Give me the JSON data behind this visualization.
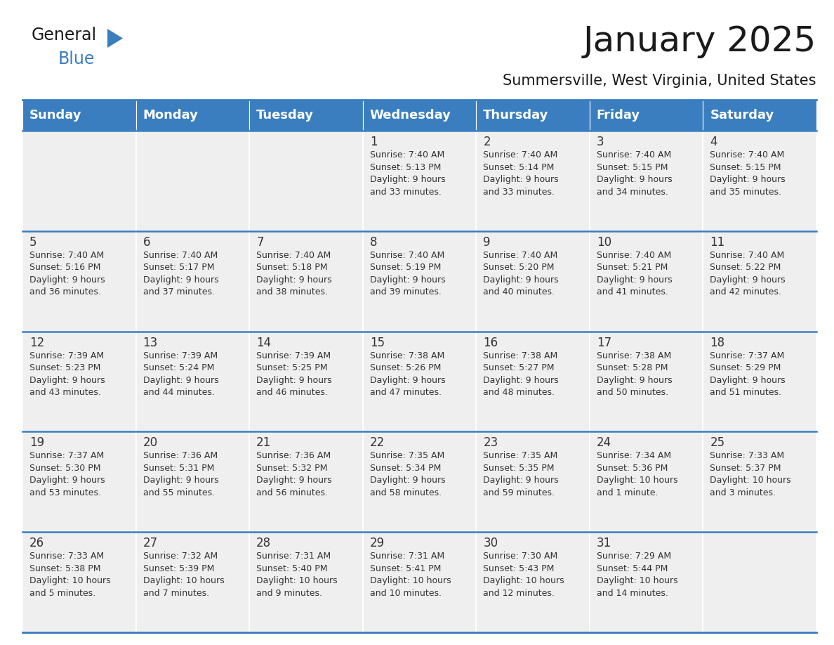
{
  "title": "January 2025",
  "subtitle": "Summersville, West Virginia, United States",
  "header_color": "#3a7ebf",
  "header_text_color": "#ffffff",
  "cell_bg_color": "#efefef",
  "border_color": "#3a7ebf",
  "text_color": "#333333",
  "days_of_week": [
    "Sunday",
    "Monday",
    "Tuesday",
    "Wednesday",
    "Thursday",
    "Friday",
    "Saturday"
  ],
  "weeks": [
    [
      {
        "day": "",
        "info": ""
      },
      {
        "day": "",
        "info": ""
      },
      {
        "day": "",
        "info": ""
      },
      {
        "day": "1",
        "info": "Sunrise: 7:40 AM\nSunset: 5:13 PM\nDaylight: 9 hours\nand 33 minutes."
      },
      {
        "day": "2",
        "info": "Sunrise: 7:40 AM\nSunset: 5:14 PM\nDaylight: 9 hours\nand 33 minutes."
      },
      {
        "day": "3",
        "info": "Sunrise: 7:40 AM\nSunset: 5:15 PM\nDaylight: 9 hours\nand 34 minutes."
      },
      {
        "day": "4",
        "info": "Sunrise: 7:40 AM\nSunset: 5:15 PM\nDaylight: 9 hours\nand 35 minutes."
      }
    ],
    [
      {
        "day": "5",
        "info": "Sunrise: 7:40 AM\nSunset: 5:16 PM\nDaylight: 9 hours\nand 36 minutes."
      },
      {
        "day": "6",
        "info": "Sunrise: 7:40 AM\nSunset: 5:17 PM\nDaylight: 9 hours\nand 37 minutes."
      },
      {
        "day": "7",
        "info": "Sunrise: 7:40 AM\nSunset: 5:18 PM\nDaylight: 9 hours\nand 38 minutes."
      },
      {
        "day": "8",
        "info": "Sunrise: 7:40 AM\nSunset: 5:19 PM\nDaylight: 9 hours\nand 39 minutes."
      },
      {
        "day": "9",
        "info": "Sunrise: 7:40 AM\nSunset: 5:20 PM\nDaylight: 9 hours\nand 40 minutes."
      },
      {
        "day": "10",
        "info": "Sunrise: 7:40 AM\nSunset: 5:21 PM\nDaylight: 9 hours\nand 41 minutes."
      },
      {
        "day": "11",
        "info": "Sunrise: 7:40 AM\nSunset: 5:22 PM\nDaylight: 9 hours\nand 42 minutes."
      }
    ],
    [
      {
        "day": "12",
        "info": "Sunrise: 7:39 AM\nSunset: 5:23 PM\nDaylight: 9 hours\nand 43 minutes."
      },
      {
        "day": "13",
        "info": "Sunrise: 7:39 AM\nSunset: 5:24 PM\nDaylight: 9 hours\nand 44 minutes."
      },
      {
        "day": "14",
        "info": "Sunrise: 7:39 AM\nSunset: 5:25 PM\nDaylight: 9 hours\nand 46 minutes."
      },
      {
        "day": "15",
        "info": "Sunrise: 7:38 AM\nSunset: 5:26 PM\nDaylight: 9 hours\nand 47 minutes."
      },
      {
        "day": "16",
        "info": "Sunrise: 7:38 AM\nSunset: 5:27 PM\nDaylight: 9 hours\nand 48 minutes."
      },
      {
        "day": "17",
        "info": "Sunrise: 7:38 AM\nSunset: 5:28 PM\nDaylight: 9 hours\nand 50 minutes."
      },
      {
        "day": "18",
        "info": "Sunrise: 7:37 AM\nSunset: 5:29 PM\nDaylight: 9 hours\nand 51 minutes."
      }
    ],
    [
      {
        "day": "19",
        "info": "Sunrise: 7:37 AM\nSunset: 5:30 PM\nDaylight: 9 hours\nand 53 minutes."
      },
      {
        "day": "20",
        "info": "Sunrise: 7:36 AM\nSunset: 5:31 PM\nDaylight: 9 hours\nand 55 minutes."
      },
      {
        "day": "21",
        "info": "Sunrise: 7:36 AM\nSunset: 5:32 PM\nDaylight: 9 hours\nand 56 minutes."
      },
      {
        "day": "22",
        "info": "Sunrise: 7:35 AM\nSunset: 5:34 PM\nDaylight: 9 hours\nand 58 minutes."
      },
      {
        "day": "23",
        "info": "Sunrise: 7:35 AM\nSunset: 5:35 PM\nDaylight: 9 hours\nand 59 minutes."
      },
      {
        "day": "24",
        "info": "Sunrise: 7:34 AM\nSunset: 5:36 PM\nDaylight: 10 hours\nand 1 minute."
      },
      {
        "day": "25",
        "info": "Sunrise: 7:33 AM\nSunset: 5:37 PM\nDaylight: 10 hours\nand 3 minutes."
      }
    ],
    [
      {
        "day": "26",
        "info": "Sunrise: 7:33 AM\nSunset: 5:38 PM\nDaylight: 10 hours\nand 5 minutes."
      },
      {
        "day": "27",
        "info": "Sunrise: 7:32 AM\nSunset: 5:39 PM\nDaylight: 10 hours\nand 7 minutes."
      },
      {
        "day": "28",
        "info": "Sunrise: 7:31 AM\nSunset: 5:40 PM\nDaylight: 10 hours\nand 9 minutes."
      },
      {
        "day": "29",
        "info": "Sunrise: 7:31 AM\nSunset: 5:41 PM\nDaylight: 10 hours\nand 10 minutes."
      },
      {
        "day": "30",
        "info": "Sunrise: 7:30 AM\nSunset: 5:43 PM\nDaylight: 10 hours\nand 12 minutes."
      },
      {
        "day": "31",
        "info": "Sunrise: 7:29 AM\nSunset: 5:44 PM\nDaylight: 10 hours\nand 14 minutes."
      },
      {
        "day": "",
        "info": ""
      }
    ]
  ],
  "title_fontsize": 36,
  "subtitle_fontsize": 15,
  "day_number_fontsize": 12,
  "cell_text_fontsize": 9,
  "header_fontsize": 13
}
